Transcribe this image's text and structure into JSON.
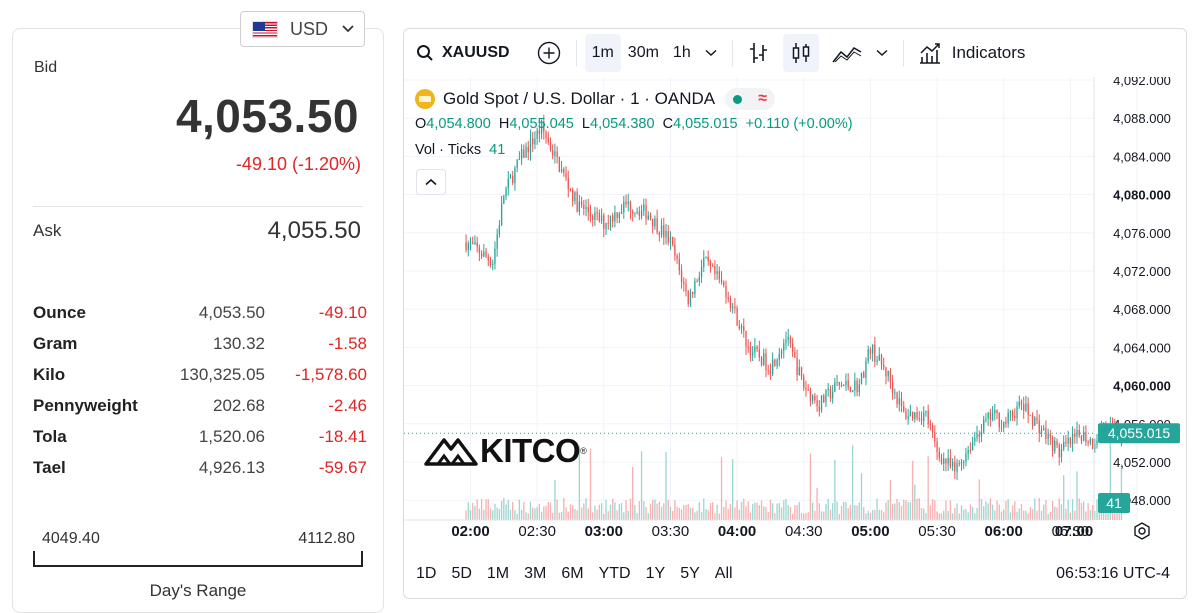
{
  "currency_selector": {
    "code": "USD",
    "flag_icon": "us-flag-icon"
  },
  "price_panel": {
    "bid_label": "Bid",
    "bid_value": "4,053.50",
    "bid_change": "-49.10 (-1.20%)",
    "ask_label": "Ask",
    "ask_value": "4,055.50",
    "units": [
      {
        "name": "Ounce",
        "price": "4,053.50",
        "change": "-49.10"
      },
      {
        "name": "Gram",
        "price": "130.32",
        "change": "-1.58"
      },
      {
        "name": "Kilo",
        "price": "130,325.05",
        "change": "-1,578.60"
      },
      {
        "name": "Pennyweight",
        "price": "202.68",
        "change": "-2.46"
      },
      {
        "name": "Tola",
        "price": "1,520.06",
        "change": "-18.41"
      },
      {
        "name": "Tael",
        "price": "4,926.13",
        "change": "-59.67"
      }
    ],
    "day_range": {
      "low": "4049.40",
      "high": "4112.80",
      "title": "Day's Range"
    }
  },
  "toolbar": {
    "symbol": "XAUUSD",
    "intervals": [
      "1m",
      "30m",
      "1h"
    ],
    "active_interval": "1m",
    "indicators_label": "Indicators"
  },
  "legend": {
    "title": "Gold Spot / U.S. Dollar · 1 · OANDA",
    "open_label": "O",
    "open": "4,054.800",
    "high_label": "H",
    "high": "4,055.045",
    "low_label": "L",
    "low": "4,054.380",
    "close_label": "C",
    "close": "4,055.015",
    "change": "+0.110 (+0.00%)",
    "volume_label": "Vol · Ticks",
    "volume": "41"
  },
  "watermark": "KITCO",
  "chart_data": {
    "type": "candlestick",
    "title": "Gold Spot / U.S. Dollar · 1 · OANDA",
    "x_ticks": [
      "02:00",
      "02:30",
      "03:00",
      "03:30",
      "04:00",
      "04:30",
      "05:00",
      "05:30",
      "06:00",
      "06:30",
      "07:00"
    ],
    "x_ticks_bold": [
      "02:00",
      "03:00",
      "04:00",
      "05:00",
      "06:00",
      "07:00"
    ],
    "y_ticks": [
      "4,092.000",
      "4,088.000",
      "4,084.000",
      "4,080.000",
      "4,076.000",
      "4,072.000",
      "4,068.000",
      "4,064.000",
      "4,060.000",
      "4,056.000",
      "4,052.000",
      "4,048.000"
    ],
    "y_ticks_bold": [
      "4,080.000",
      "4,060.000"
    ],
    "ylim": [
      4046,
      4093
    ],
    "last_price_label": "4,055.015",
    "last_volume_label": "41",
    "close_path": [
      [
        "01:58",
        4075
      ],
      [
        "02:10",
        4073
      ],
      [
        "02:15",
        4080
      ],
      [
        "02:23",
        4084
      ],
      [
        "02:32",
        4087
      ],
      [
        "02:40",
        4083
      ],
      [
        "02:48",
        4079
      ],
      [
        "03:00",
        4077
      ],
      [
        "03:10",
        4079
      ],
      [
        "03:20",
        4078
      ],
      [
        "03:30",
        4075
      ],
      [
        "03:38",
        4069
      ],
      [
        "03:45",
        4073
      ],
      [
        "03:55",
        4070
      ],
      [
        "04:05",
        4064
      ],
      [
        "04:15",
        4062
      ],
      [
        "04:22",
        4065
      ],
      [
        "04:30",
        4060
      ],
      [
        "04:37",
        4058
      ],
      [
        "04:45",
        4060
      ],
      [
        "04:55",
        4060
      ],
      [
        "05:00",
        4064
      ],
      [
        "05:08",
        4061
      ],
      [
        "05:15",
        4057
      ],
      [
        "05:25",
        4057
      ],
      [
        "05:30",
        4053
      ],
      [
        "05:38",
        4051
      ],
      [
        "05:48",
        4055
      ],
      [
        "05:55",
        4057
      ],
      [
        "06:00",
        4056
      ],
      [
        "06:08",
        4058
      ],
      [
        "06:15",
        4056
      ],
      [
        "06:25",
        4053
      ],
      [
        "06:35",
        4055
      ],
      [
        "06:40",
        4054
      ],
      [
        "06:45",
        4056
      ],
      [
        "06:50",
        4055
      ],
      [
        "06:53",
        4055
      ]
    ],
    "colors": {
      "up": "#26a69a",
      "down": "#ef5350",
      "last_price": "#26a69a"
    }
  },
  "timeframes": [
    "1D",
    "5D",
    "1M",
    "3M",
    "6M",
    "YTD",
    "1Y",
    "5Y",
    "All"
  ],
  "clock": "06:53:16 UTC-4"
}
